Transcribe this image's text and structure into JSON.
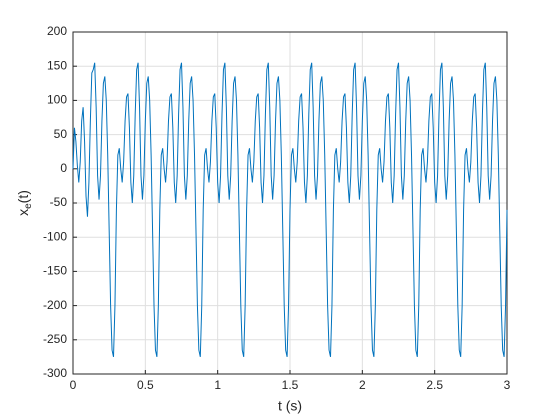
{
  "chart_data": {
    "type": "line",
    "xlabel": "t (s)",
    "ylabel": [
      "x",
      "e",
      "(t)"
    ],
    "xlim": [
      0,
      3
    ],
    "xticks": [
      0,
      0.5,
      1,
      1.5,
      2,
      2.5,
      3
    ],
    "ylim": [
      -300,
      200
    ],
    "yticks": [
      -300,
      -250,
      -200,
      -150,
      -100,
      -50,
      0,
      50,
      100,
      150,
      200
    ],
    "grid": true,
    "color": "#0072bd",
    "x": [
      0,
      0.01,
      0.02,
      0.03,
      0.04,
      0.05,
      0.06,
      0.07,
      0.08,
      0.09,
      0.1,
      0.11,
      0.12,
      0.13,
      0.14,
      0.15,
      0.16,
      0.17,
      0.18,
      0.19,
      0.2,
      0.21,
      0.22,
      0.23,
      0.24,
      0.25,
      0.26,
      0.27,
      0.28,
      0.29,
      0.3,
      0.31,
      0.32,
      0.33,
      0.34,
      0.35,
      0.36,
      0.37,
      0.38,
      0.39,
      0.4,
      0.41,
      0.42,
      0.43,
      0.44,
      0.45,
      0.46,
      0.47,
      0.48,
      0.49,
      0.5,
      0.51,
      0.52,
      0.53,
      0.54,
      0.55,
      0.56,
      0.57,
      0.58,
      0.59,
      0.6,
      0.61,
      0.62,
      0.63,
      0.64,
      0.65,
      0.66,
      0.67,
      0.68,
      0.69,
      0.7,
      0.71,
      0.72,
      0.73,
      0.74,
      0.75,
      0.76,
      0.77,
      0.78,
      0.79,
      0.8,
      0.81,
      0.82,
      0.83,
      0.84,
      0.85,
      0.86,
      0.87,
      0.88,
      0.89,
      0.9,
      0.91,
      0.92,
      0.93,
      0.94,
      0.95,
      0.96,
      0.97,
      0.98,
      0.99,
      1,
      1.01,
      1.02,
      1.03,
      1.04,
      1.05,
      1.06,
      1.07,
      1.08,
      1.09,
      1.1,
      1.11,
      1.12,
      1.13,
      1.14,
      1.15,
      1.16,
      1.17,
      1.18,
      1.19,
      1.2,
      1.21,
      1.22,
      1.23,
      1.24,
      1.25,
      1.26,
      1.27,
      1.28,
      1.29,
      1.3,
      1.31,
      1.32,
      1.33,
      1.34,
      1.35,
      1.36,
      1.37,
      1.38,
      1.39,
      1.4,
      1.41,
      1.42,
      1.43,
      1.44,
      1.45,
      1.46,
      1.47,
      1.48,
      1.49,
      1.5,
      1.51,
      1.52,
      1.53,
      1.54,
      1.55,
      1.56,
      1.57,
      1.58,
      1.59,
      1.6,
      1.61,
      1.62,
      1.63,
      1.64,
      1.65,
      1.66,
      1.67,
      1.68,
      1.69,
      1.7,
      1.71,
      1.72,
      1.73,
      1.74,
      1.75,
      1.76,
      1.77,
      1.78,
      1.79,
      1.8,
      1.81,
      1.82,
      1.83,
      1.84,
      1.85,
      1.86,
      1.87,
      1.88,
      1.89,
      1.9,
      1.91,
      1.92,
      1.93,
      1.94,
      1.95,
      1.96,
      1.97,
      1.98,
      1.99,
      2,
      2.01,
      2.02,
      2.03,
      2.04,
      2.05,
      2.06,
      2.07,
      2.08,
      2.09,
      2.1,
      2.11,
      2.12,
      2.13,
      2.14,
      2.15,
      2.16,
      2.17,
      2.18,
      2.19,
      2.2,
      2.21,
      2.22,
      2.23,
      2.24,
      2.25,
      2.26,
      2.27,
      2.28,
      2.29,
      2.3,
      2.31,
      2.32,
      2.33,
      2.34,
      2.35,
      2.36,
      2.37,
      2.38,
      2.39,
      2.4,
      2.41,
      2.42,
      2.43,
      2.44,
      2.45,
      2.46,
      2.47,
      2.48,
      2.49,
      2.5,
      2.51,
      2.52,
      2.53,
      2.54,
      2.55,
      2.56,
      2.57,
      2.58,
      2.59,
      2.6,
      2.61,
      2.62,
      2.63,
      2.64,
      2.65,
      2.66,
      2.67,
      2.68,
      2.69,
      2.7,
      2.71,
      2.72,
      2.73,
      2.74,
      2.75,
      2.76,
      2.77,
      2.78,
      2.79,
      2.8,
      2.81,
      2.82,
      2.83,
      2.84,
      2.85,
      2.86,
      2.87,
      2.88,
      2.89,
      2.9,
      2.91,
      2.92,
      2.93,
      2.94,
      2.95,
      2.96,
      2.97,
      2.98,
      2.99,
      3
    ],
    "values": [
      0,
      60,
      40,
      5,
      -20,
      10,
      70,
      90,
      40,
      -40,
      -70,
      -20,
      70,
      140,
      145,
      155,
      90,
      -10,
      -45,
      -10,
      70,
      125,
      135,
      100,
      20,
      -90,
      -200,
      -265,
      -275,
      -200,
      -60,
      20,
      30,
      0,
      -20,
      10,
      70,
      105,
      110,
      60,
      -20,
      -50,
      -10,
      80,
      145,
      155,
      90,
      -10,
      -45,
      -10,
      70,
      125,
      135,
      100,
      20,
      -90,
      -200,
      -265,
      -275,
      -200,
      -60,
      20,
      30,
      0,
      -20,
      10,
      70,
      105,
      110,
      60,
      -20,
      -50,
      -10,
      80,
      145,
      155,
      90,
      -10,
      -45,
      -10,
      70,
      125,
      135,
      100,
      20,
      -90,
      -200,
      -265,
      -275,
      -200,
      -60,
      20,
      30,
      0,
      -20,
      10,
      70,
      105,
      110,
      60,
      -20,
      -50,
      -10,
      80,
      145,
      155,
      90,
      -10,
      -45,
      -10,
      70,
      125,
      135,
      100,
      20,
      -90,
      -200,
      -265,
      -275,
      -200,
      -60,
      20,
      30,
      0,
      -20,
      10,
      70,
      105,
      110,
      60,
      -20,
      -50,
      -10,
      80,
      145,
      155,
      90,
      -10,
      -45,
      -10,
      70,
      125,
      135,
      100,
      20,
      -90,
      -200,
      -265,
      -275,
      -200,
      -60,
      20,
      30,
      0,
      -20,
      10,
      70,
      105,
      110,
      60,
      -20,
      -50,
      -10,
      80,
      145,
      155,
      90,
      -10,
      -45,
      -10,
      70,
      125,
      135,
      100,
      20,
      -90,
      -200,
      -265,
      -275,
      -200,
      -60,
      20,
      30,
      0,
      -20,
      10,
      70,
      105,
      110,
      60,
      -20,
      -50,
      -10,
      80,
      145,
      155,
      90,
      -10,
      -45,
      -10,
      70,
      125,
      135,
      100,
      20,
      -90,
      -200,
      -265,
      -275,
      -200,
      -60,
      20,
      30,
      0,
      -20,
      10,
      70,
      105,
      110,
      60,
      -20,
      -50,
      -10,
      80,
      145,
      155,
      90,
      -10,
      -45,
      -10,
      70,
      125,
      135,
      100,
      20,
      -90,
      -200,
      -265,
      -275,
      -200,
      -60,
      20,
      30,
      0,
      -20,
      10,
      70,
      105,
      110,
      60,
      -20,
      -50,
      -10,
      80,
      145,
      155,
      90,
      -10,
      -45,
      -10,
      70,
      125,
      135,
      100,
      20,
      -90,
      -200,
      -265,
      -275,
      -200,
      -60,
      20,
      30,
      0,
      -20,
      10,
      70,
      105,
      110,
      60,
      -20,
      -50,
      -10,
      80,
      145,
      155,
      90,
      -10,
      -45,
      -10,
      70,
      125,
      135,
      100,
      20,
      -90,
      -200,
      -265,
      -275,
      -200,
      -60
    ]
  }
}
